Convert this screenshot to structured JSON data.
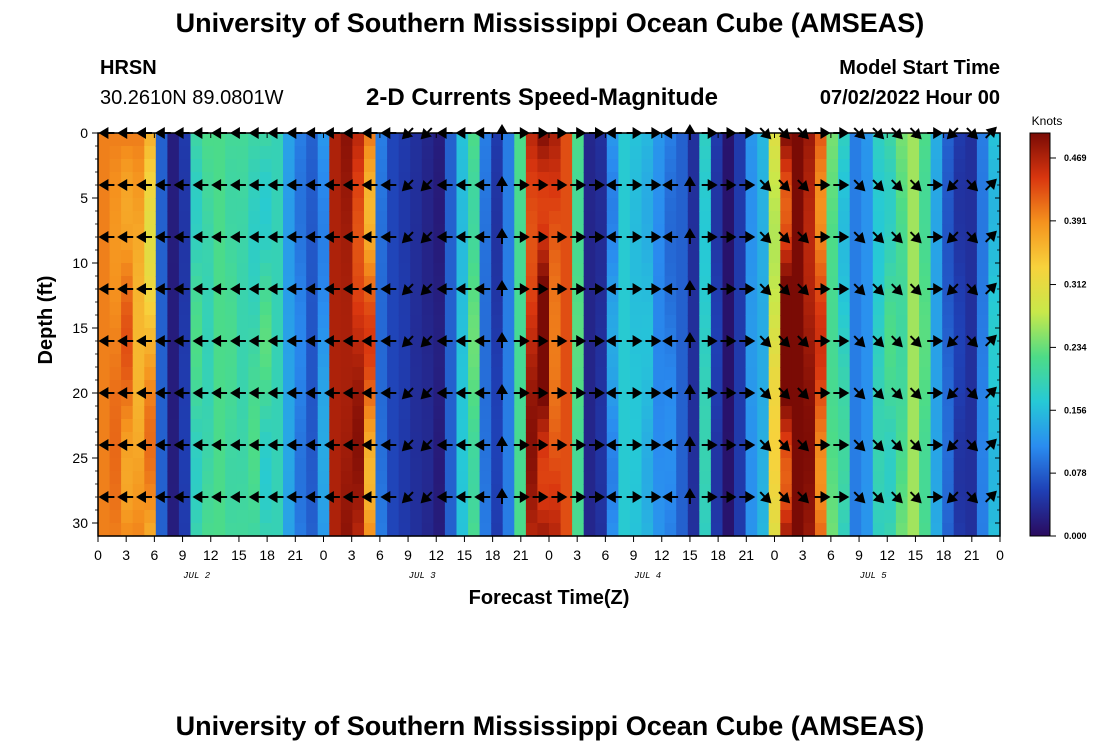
{
  "header": {
    "title": "University of Southern Mississippi Ocean Cube (AMSEAS)",
    "station": "HRSN",
    "coords": "30.2610N  89.0801W",
    "subtitle": "2-D Currents Speed-Magnitude",
    "model_label": "Model Start Time",
    "model_time": "07/02/2022 Hour 00"
  },
  "footer": {
    "title": "University of Southern Mississippi Ocean Cube (AMSEAS)"
  },
  "chart_data": {
    "type": "heatmap",
    "title": "2-D Currents Speed-Magnitude",
    "xlabel": "Forecast Time(Z)",
    "ylabel": "Depth (ft)",
    "x_ticks": [
      "0",
      "3",
      "6",
      "9",
      "12",
      "15",
      "18",
      "21",
      "0",
      "3",
      "6",
      "9",
      "12",
      "15",
      "18",
      "21",
      "0",
      "3",
      "6",
      "9",
      "12",
      "15",
      "18",
      "21",
      "0",
      "3",
      "6",
      "9",
      "12",
      "15",
      "18",
      "21",
      "0"
    ],
    "x_range_hours": [
      0,
      96
    ],
    "day_labels": [
      {
        "label": "JUL 2",
        "hour": 10.5
      },
      {
        "label": "JUL 3",
        "hour": 34.5
      },
      {
        "label": "JUL 4",
        "hour": 58.5
      },
      {
        "label": "JUL 5",
        "hour": 82.5
      }
    ],
    "y_ticks": [
      0,
      5,
      10,
      15,
      20,
      25,
      30
    ],
    "y_range_ft": [
      0,
      31
    ],
    "colorbar": {
      "unit": "Knots",
      "ticks": [
        "0.469",
        "0.391",
        "0.312",
        "0.234",
        "0.156",
        "0.078",
        "0.000"
      ],
      "tick_values": [
        0.469,
        0.391,
        0.312,
        0.234,
        0.156,
        0.078,
        0.0
      ],
      "min": 0.0,
      "max": 0.5,
      "colors": [
        "#2a0a5e",
        "#1f3fb4",
        "#2a8cf0",
        "#26c9d6",
        "#4ddc87",
        "#c8e84a",
        "#f7d23c",
        "#f5931e",
        "#d9360f",
        "#7a0b05"
      ]
    },
    "speed_profile_knots": [
      0.4,
      0.4,
      0.4,
      0.4,
      0.36,
      0.08,
      0.02,
      0.05,
      0.2,
      0.22,
      0.22,
      0.21,
      0.21,
      0.2,
      0.2,
      0.19,
      0.13,
      0.1,
      0.08,
      0.12,
      0.47,
      0.49,
      0.46,
      0.4,
      0.1,
      0.06,
      0.05,
      0.04,
      0.03,
      0.02,
      0.08,
      0.16,
      0.22,
      0.1,
      0.05,
      0.1,
      0.22,
      0.46,
      0.49,
      0.47,
      0.43,
      0.22,
      0.03,
      0.04,
      0.12,
      0.17,
      0.16,
      0.15,
      0.12,
      0.1,
      0.08,
      0.04,
      0.18,
      0.05,
      0.01,
      0.05,
      0.12,
      0.15,
      0.3,
      0.49,
      0.5,
      0.48,
      0.42,
      0.24,
      0.18,
      0.1,
      0.12,
      0.18,
      0.2,
      0.24,
      0.26,
      0.22,
      0.14,
      0.08,
      0.05,
      0.04,
      0.1,
      0.16
    ],
    "arrow_depths_ft": [
      0,
      4,
      8,
      12,
      16,
      20,
      24,
      28
    ],
    "arrow_hours": [
      1,
      3,
      5,
      7,
      9,
      11,
      13,
      15,
      17,
      19,
      21,
      23,
      25,
      27,
      29,
      31,
      33,
      35,
      37,
      39,
      41,
      43,
      45,
      47,
      49,
      51,
      53,
      55,
      57,
      59,
      61,
      63,
      65,
      67,
      69,
      71,
      73,
      75,
      77,
      79,
      81,
      83,
      85,
      87,
      89,
      91,
      93,
      95
    ],
    "arrow_dirs": [
      "W",
      "W",
      "W",
      "W",
      "W",
      "W",
      "W",
      "W",
      "W",
      "W",
      "W",
      "W",
      "W",
      "W",
      "W",
      "W",
      "SW",
      "SW",
      "W",
      "W",
      "W",
      "N",
      "E",
      "E",
      "E",
      "E",
      "E",
      "W",
      "E",
      "E",
      "W",
      "N",
      "E",
      "E",
      "E",
      "SE",
      "SE",
      "SE",
      "E",
      "E",
      "SE",
      "SE",
      "SE",
      "SE",
      "E",
      "SW",
      "SE",
      "NE"
    ]
  }
}
